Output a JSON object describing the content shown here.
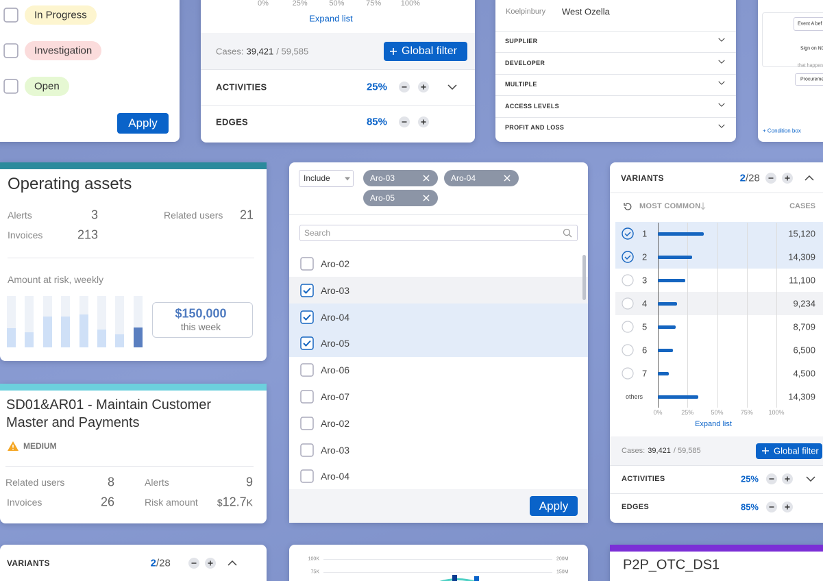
{
  "filter_panel": {
    "statuses": [
      "In Progress",
      "Investigation",
      "Open"
    ],
    "apply": "Apply"
  },
  "process_panel": {
    "axis_ticks": [
      "0%",
      "25%",
      "50%",
      "75%",
      "100%"
    ],
    "expand": "Expand list",
    "cases_label": "Cases:",
    "cases": "39,421",
    "cases_total": "/ 59,585",
    "global_filter": "Global filter",
    "activities": {
      "label": "ACTIVITIES",
      "value": "25%"
    },
    "edges": {
      "label": "EDGES",
      "value": "85%"
    }
  },
  "attributes_panel": {
    "location_label": "Koelpinbury",
    "location_value": "West Ozella",
    "sections": [
      "SUPPLIER",
      "DEVELOPER",
      "MULTIPLE",
      "ACCESS LEVELS",
      "PROFIT AND LOSS"
    ]
  },
  "condition_panel": {
    "event": "Event A bef",
    "sign": "Sign on ND",
    "happen": "that happen",
    "procurement": "Procureme",
    "add": "+ Condition box"
  },
  "operating_assets": {
    "title": "Operating assets",
    "stats": [
      {
        "label": "Alerts",
        "value": "3"
      },
      {
        "label": "Related users",
        "value": "21"
      },
      {
        "label": "Invoices",
        "value": "213"
      }
    ],
    "chart_label": "Amount at risk, weekly",
    "weekly": {
      "ylim": [
        0,
        100
      ],
      "values": [
        37,
        29,
        60,
        60,
        64,
        35,
        25,
        39
      ]
    },
    "amount": "$150,000",
    "period": "this week"
  },
  "risk_card": {
    "title": "SD01&AR01 - Maintain Customer Master and Payments",
    "severity": "MEDIUM",
    "stats": [
      {
        "label": "Related users",
        "value": "8"
      },
      {
        "label": "Alerts",
        "value": "9"
      },
      {
        "label": "Invoices",
        "value": "26"
      },
      {
        "label": "Risk amount",
        "prefix": "$",
        "value": "12.7",
        "suffix": "K"
      }
    ]
  },
  "selector": {
    "mode": "Include",
    "chips": [
      "Aro-03",
      "Aro-04",
      "Aro-05"
    ],
    "search": "Search",
    "items": [
      {
        "label": "Aro-02",
        "checked": false
      },
      {
        "label": "Aro-03",
        "checked": true
      },
      {
        "label": "Aro-04",
        "checked": true
      },
      {
        "label": "Aro-05",
        "checked": true
      },
      {
        "label": "Aro-06",
        "checked": false
      },
      {
        "label": "Aro-07",
        "checked": false
      },
      {
        "label": "Aro-02",
        "checked": false
      },
      {
        "label": "Aro-03",
        "checked": false
      },
      {
        "label": "Aro-04",
        "checked": false
      }
    ],
    "apply": "Apply"
  },
  "variants": {
    "title": "VARIANTS",
    "selected": "2",
    "total": "/28",
    "sort": "MOST COMMON",
    "cases_header": "CASES",
    "xlim": [
      0,
      100
    ],
    "xticks": [
      {
        "value": 0,
        "label": "0%"
      },
      {
        "value": 25,
        "label": "25%"
      },
      {
        "value": 50,
        "label": "50%"
      },
      {
        "value": 75,
        "label": "75%"
      },
      {
        "value": 100,
        "label": "100%"
      }
    ],
    "rows": [
      {
        "label": "1",
        "share": 39,
        "cases": "15,120",
        "selected": true
      },
      {
        "label": "2",
        "share": 29,
        "cases": "14,309",
        "selected": true
      },
      {
        "label": "3",
        "share": 23,
        "cases": "11,100",
        "selected": false
      },
      {
        "label": "4",
        "share": 16,
        "cases": "9,234",
        "selected": false
      },
      {
        "label": "5",
        "share": 15,
        "cases": "8,709",
        "selected": false
      },
      {
        "label": "6",
        "share": 13,
        "cases": "6,500",
        "selected": false
      },
      {
        "label": "7",
        "share": 9,
        "cases": "4,500",
        "selected": false
      },
      {
        "label": "others",
        "share": 34,
        "cases": "14,309"
      }
    ],
    "expand": "Expand list",
    "cases_label": "Cases:",
    "cases": "39,421",
    "cases_total": "/ 59,585",
    "global_filter": "Global filter",
    "activities": {
      "label": "ACTIVITIES",
      "value": "25%"
    },
    "edges": {
      "label": "EDGES",
      "value": "85%"
    }
  },
  "variants_collapsed": {
    "title": "VARIANTS",
    "selected": "2",
    "total": "/28"
  },
  "volume_chart": {
    "left_ticks": [
      "100K",
      "75K"
    ],
    "right_ticks": [
      "200M",
      "150M"
    ]
  },
  "dataset_card": {
    "title": "P2P_OTC_DS1"
  }
}
